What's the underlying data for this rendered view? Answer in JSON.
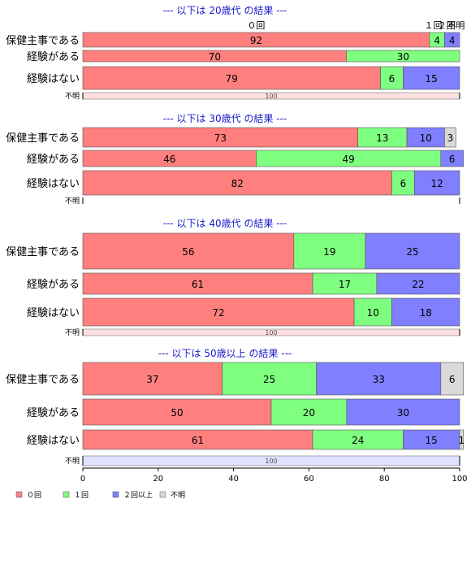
{
  "chart_data": {
    "type": "bar",
    "orientation": "horizontal",
    "stacked": true,
    "series_names": [
      "０回",
      "１回",
      "２回以上",
      "不明"
    ],
    "colors": [
      "#ff7f7f",
      "#7fff7f",
      "#7f7fff",
      "#d9d9d9"
    ],
    "top_labels": [
      "０回",
      "１回",
      "２回",
      "不明"
    ],
    "xlim": [
      0,
      100
    ],
    "xticks": [
      "0",
      "20",
      "40",
      "60",
      "80",
      "100"
    ],
    "panels": [
      {
        "title": "--- 以下は 20歳代 の結果 ---",
        "rows": [
          {
            "label": "保健主事である",
            "values": [
              92,
              4,
              4,
              0
            ]
          },
          {
            "label": "経験がある",
            "values": [
              70,
              30,
              0,
              0
            ]
          },
          {
            "label": "経験はない",
            "values": [
              79,
              6,
              15,
              0
            ]
          },
          {
            "label": "不明",
            "small": true,
            "values": [
              100,
              0,
              0,
              0
            ]
          }
        ]
      },
      {
        "title": "--- 以下は 30歳代 の結果 ---",
        "rows": [
          {
            "label": "保健主事である",
            "values": [
              73,
              13,
              10,
              3
            ]
          },
          {
            "label": "経験がある",
            "values": [
              46,
              49,
              6,
              0
            ]
          },
          {
            "label": "経験はない",
            "values": [
              82,
              6,
              12,
              0
            ]
          },
          {
            "label": "不明",
            "small": true,
            "values": [
              0,
              0,
              0,
              0
            ]
          }
        ]
      },
      {
        "title": "--- 以下は 40歳代 の結果 ---",
        "rows": [
          {
            "label": "保健主事である",
            "values": [
              56,
              19,
              25,
              0
            ]
          },
          {
            "label": "経験がある",
            "values": [
              61,
              17,
              22,
              0
            ]
          },
          {
            "label": "経験はない",
            "values": [
              72,
              10,
              18,
              0
            ]
          },
          {
            "label": "不明",
            "small": true,
            "values": [
              100,
              0,
              0,
              0
            ]
          }
        ]
      },
      {
        "title": "--- 以下は 50歳以上 の結果 ---",
        "rows": [
          {
            "label": "保健主事である",
            "values": [
              37,
              25,
              33,
              6
            ]
          },
          {
            "label": "経験がある",
            "values": [
              50,
              20,
              30,
              0
            ]
          },
          {
            "label": "経験はない",
            "values": [
              61,
              24,
              15,
              1
            ]
          },
          {
            "label": "不明",
            "small": true,
            "values": [
              0,
              0,
              100,
              0
            ]
          }
        ]
      }
    ]
  }
}
